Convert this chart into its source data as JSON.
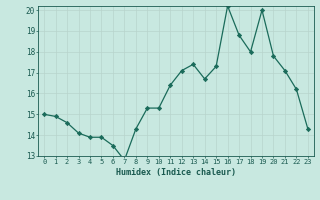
{
  "x": [
    0,
    1,
    2,
    3,
    4,
    5,
    6,
    7,
    8,
    9,
    10,
    11,
    12,
    13,
    14,
    15,
    16,
    17,
    18,
    19,
    20,
    21,
    22,
    23
  ],
  "y": [
    15.0,
    14.9,
    14.6,
    14.1,
    13.9,
    13.9,
    13.5,
    12.8,
    14.3,
    15.3,
    15.3,
    16.4,
    17.1,
    17.4,
    16.7,
    17.3,
    20.2,
    18.8,
    18.0,
    20.0,
    17.8,
    17.1,
    16.2,
    14.3
  ],
  "xlabel": "Humidex (Indice chaleur)",
  "ylim": [
    13,
    20
  ],
  "xlim": [
    -0.5,
    23.5
  ],
  "yticks": [
    13,
    14,
    15,
    16,
    17,
    18,
    19,
    20
  ],
  "xticks": [
    0,
    1,
    2,
    3,
    4,
    5,
    6,
    7,
    8,
    9,
    10,
    11,
    12,
    13,
    14,
    15,
    16,
    17,
    18,
    19,
    20,
    21,
    22,
    23
  ],
  "bg_color": "#c8e8e0",
  "grid_color": "#b8d4cc",
  "line_color": "#1a6b5a",
  "marker_color": "#1a6b5a",
  "text_color": "#1a5a50",
  "axis_color": "#1a5a50"
}
